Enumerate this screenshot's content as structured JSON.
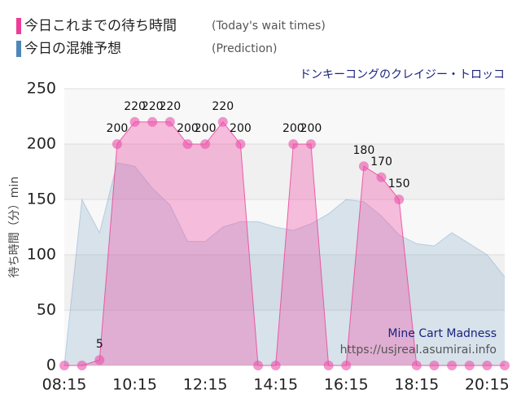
{
  "chart_data": {
    "type": "area",
    "subtitle": "ドンキーコングのクレイジー・トロッコ",
    "y_label": "待ち時間（分）min",
    "categories": [
      "08:15",
      null,
      null,
      null,
      "10:15",
      null,
      null,
      null,
      "12:15",
      null,
      null,
      null,
      "14:15",
      null,
      null,
      null,
      "16:15",
      null,
      null,
      null,
      "18:15",
      null,
      null,
      null,
      "20:15",
      null
    ],
    "series": [
      {
        "name": "今日の混雑予想",
        "name_en": "(Prediction)",
        "color": "#4f86b8",
        "values": [
          0,
          150,
          120,
          183,
          180,
          160,
          145,
          112,
          112,
          125,
          130,
          130,
          125,
          122,
          128,
          137,
          150,
          148,
          135,
          118,
          110,
          108,
          120,
          110,
          100,
          80
        ]
      },
      {
        "name": "今日これまでの待ち時間",
        "name_en": "(Today's wait times)",
        "color": "#ee3d96",
        "values": [
          0,
          0,
          5,
          200,
          220,
          220,
          220,
          200,
          200,
          220,
          200,
          0,
          0,
          200,
          200,
          0,
          0,
          180,
          170,
          150,
          0,
          0,
          0,
          0,
          0,
          0
        ]
      }
    ],
    "ylim": [
      0,
      250
    ],
    "yticks": [
      0,
      50,
      100,
      150,
      200,
      250
    ],
    "grid": true,
    "annotations": [
      "Mine Cart Madness",
      "https://usjreal.asumirai.info"
    ]
  }
}
